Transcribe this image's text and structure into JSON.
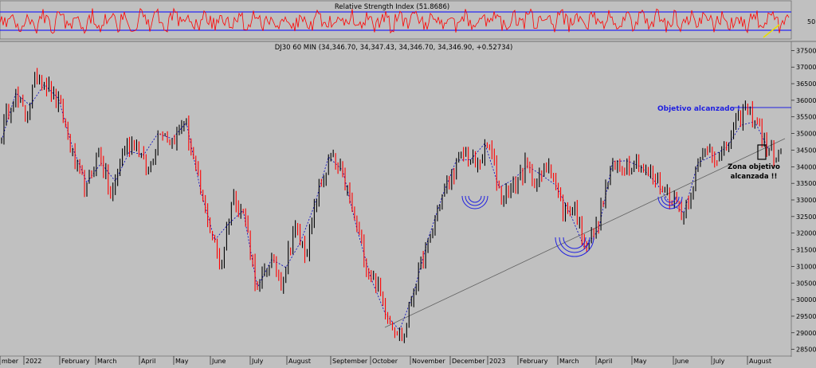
{
  "rsi_panel": {
    "title": "Relative Strength Index (51.8686)",
    "tick_labels": [
      "50"
    ]
  },
  "main_panel": {
    "title": "DJ30 60 MIN (34,346.70, 34,347.43, 34,346.70, 34,346.90, +0.52734)",
    "y_ticks": [
      "37500",
      "37000",
      "36500",
      "36000",
      "35500",
      "35000",
      "34500",
      "34000",
      "33500",
      "33000",
      "32500",
      "32000",
      "31500",
      "31000",
      "30500",
      "30000",
      "29500",
      "29000",
      "28500"
    ],
    "x_labels": [
      "mber",
      "2022",
      "February",
      "March",
      "April",
      "May",
      "June",
      "July",
      "August",
      "September",
      "October",
      "November",
      "December",
      "2023",
      "February",
      "March",
      "April",
      "May",
      "June",
      "July",
      "August"
    ],
    "annotations": {
      "target_reached": "Objetivo alcanzado !",
      "zone_line1": "Zona objetivo",
      "zone_line2": "alcanzada !!"
    }
  },
  "colors": {
    "background": "#c0c0c0",
    "rsi_line": "#ff0000",
    "rsi_levels": "#0000ff",
    "price_up": "#000000",
    "price_down": "#ff0000",
    "trend_line": "#606060",
    "annotation_blue": "#2020e0",
    "swing_line": "#0000c0"
  },
  "chart_data": {
    "type": "line",
    "title": "DJ30 60 MIN (34,346.70, 34,347.43, 34,346.70, 34,346.90, +0.52734)",
    "ylim": [
      28300,
      37700
    ],
    "xlabel": "",
    "ylabel": "",
    "x": [
      "mber",
      "2022",
      "February",
      "March",
      "April",
      "May",
      "June",
      "July",
      "August",
      "September",
      "October",
      "November",
      "December",
      "2023",
      "February",
      "March",
      "April",
      "May",
      "June",
      "July",
      "August"
    ],
    "price_path_approx": [
      35000,
      36200,
      35500,
      36900,
      36300,
      35600,
      34100,
      33300,
      34500,
      33000,
      34500,
      34800,
      33800,
      35200,
      34800,
      35400,
      33800,
      32300,
      31000,
      33200,
      32500,
      30200,
      31200,
      30500,
      32200,
      31400,
      33200,
      34300,
      33700,
      32400,
      31000,
      30300,
      29300,
      28800,
      30600,
      31600,
      32900,
      33800,
      34400,
      34000,
      34700,
      33100,
      33400,
      34000,
      33500,
      34200,
      32700,
      32800,
      31600,
      32300,
      33900,
      34000,
      34300,
      33800,
      33500,
      33100,
      32600,
      33800,
      34700,
      34200,
      35000,
      35700,
      35400,
      34400,
      34300
    ],
    "resistance_level": 35550,
    "trend_line": [
      [
        28650,
        "October"
      ],
      [
        34450,
        "August"
      ]
    ],
    "rsi": {
      "current": 51.8686,
      "levels": [
        70,
        30
      ],
      "ticks": [
        50
      ]
    }
  }
}
